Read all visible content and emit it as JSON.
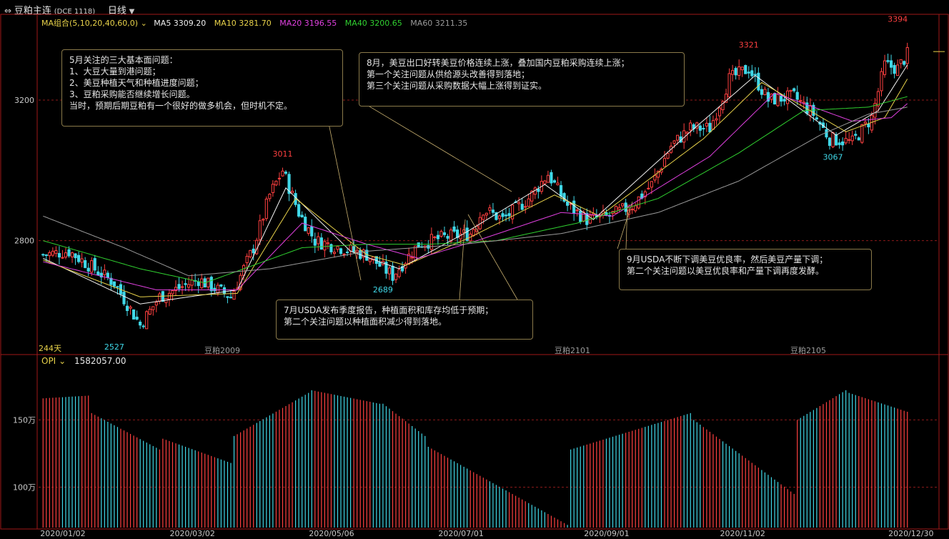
{
  "header": {
    "symbol_label": "豆粕主连",
    "exchange_code": "(DCE 1118)",
    "period_label": "日线",
    "ma_group_label": "MA组合(5,10,20,40,60,0)",
    "ma5_label": "MA5 3309.20",
    "ma10_label": "MA10 3281.70",
    "ma20_label": "MA20 3196.55",
    "ma40_label": "MA40 3200.65",
    "ma60_label": "MA60 3211.35"
  },
  "colors": {
    "up": "#ff4040",
    "down": "#40d8e8",
    "ma5": "#f0f0f0",
    "ma10": "#e8d24a",
    "ma20": "#e040e0",
    "ma40": "#30d030",
    "ma60": "#9a9a9a",
    "grid": "#8b1a1a",
    "border": "#a01818",
    "axis_text": "#c8c8c8"
  },
  "main_panel": {
    "bar_count_label": "244天",
    "contract_labels": [
      "豆粕2009",
      "豆粕2101",
      "豆粕2105"
    ]
  },
  "annotations": [
    {
      "id": "may",
      "text": "5月关注的三大基本面问题：\n1、大豆大量到港问题；\n2、美豆种植天气和种植进度问题；\n3、豆粕采购能否继续增长问题。\n当时，预期后期豆粕有一个很好的做多机会，但时机不定。"
    },
    {
      "id": "aug",
      "text": "8月，美豆出口好转美豆价格连续上涨，叠加国内豆粕采购连续上涨；\n第一个关注问题从供给源头改善得到落地；\n第三个关注问题从采购数据大幅上涨得到证实。"
    },
    {
      "id": "jul",
      "text": "7月USDA发布季度报告，种植面积和库存均低于预期；\n第二个关注问题以种植面积减少得到落地。"
    },
    {
      "id": "sep",
      "text": "9月USDA不断下调美豆优良率，然后美豆产量下调；\n第二个关注问题以美豆优良率和产量下调再度发酵。"
    }
  ],
  "oi_panel": {
    "label": "OPI",
    "value": "1582057.00",
    "y_ticks": [
      "150万",
      "100万"
    ]
  },
  "chart_data": {
    "type": "candlestick",
    "title": "豆粕主连 日线",
    "y_ticks": [
      3200,
      2800
    ],
    "ylim": [
      2480,
      3440
    ],
    "x_ticks": [
      "2020/01/02",
      "2020/03/02",
      "2020/05/06",
      "2020/07/01",
      "2020/09/01",
      "2020/11/02",
      "2020/12/30"
    ],
    "extremes": [
      {
        "label": "3394",
        "value": 3394,
        "kind": "high",
        "date": "2020/12/30"
      },
      {
        "label": "3321",
        "value": 3321,
        "kind": "high",
        "date": "2020/10"
      },
      {
        "label": "3011",
        "value": 3011,
        "kind": "high",
        "date": "2020/04"
      },
      {
        "label": "3067",
        "value": 3067,
        "kind": "low",
        "date": "2020/12"
      },
      {
        "label": "2689",
        "value": 2689,
        "kind": "low",
        "date": "2020/06"
      },
      {
        "label": "2527",
        "value": 2527,
        "kind": "low",
        "date": "2020/02"
      }
    ],
    "close_path": [
      {
        "x": 0,
        "v": 2760
      },
      {
        "x": 8,
        "v": 2770
      },
      {
        "x": 22,
        "v": 2680
      },
      {
        "x": 30,
        "v": 2560
      },
      {
        "x": 36,
        "v": 2640
      },
      {
        "x": 48,
        "v": 2690
      },
      {
        "x": 58,
        "v": 2640
      },
      {
        "x": 65,
        "v": 2780
      },
      {
        "x": 70,
        "v": 2930
      },
      {
        "x": 74,
        "v": 3000
      },
      {
        "x": 79,
        "v": 2880
      },
      {
        "x": 84,
        "v": 2800
      },
      {
        "x": 92,
        "v": 2780
      },
      {
        "x": 100,
        "v": 2760
      },
      {
        "x": 108,
        "v": 2700
      },
      {
        "x": 116,
        "v": 2790
      },
      {
        "x": 124,
        "v": 2810
      },
      {
        "x": 132,
        "v": 2820
      },
      {
        "x": 136,
        "v": 2890
      },
      {
        "x": 142,
        "v": 2860
      },
      {
        "x": 150,
        "v": 2920
      },
      {
        "x": 156,
        "v": 2990
      },
      {
        "x": 162,
        "v": 2900
      },
      {
        "x": 168,
        "v": 2860
      },
      {
        "x": 175,
        "v": 2870
      },
      {
        "x": 182,
        "v": 2900
      },
      {
        "x": 188,
        "v": 2960
      },
      {
        "x": 194,
        "v": 3070
      },
      {
        "x": 200,
        "v": 3120
      },
      {
        "x": 206,
        "v": 3120
      },
      {
        "x": 212,
        "v": 3260
      },
      {
        "x": 218,
        "v": 3290
      },
      {
        "x": 224,
        "v": 3200
      },
      {
        "x": 232,
        "v": 3210
      },
      {
        "x": 238,
        "v": 3160
      },
      {
        "x": 243,
        "v": 3090
      },
      {
        "x": 250,
        "v": 3080
      },
      {
        "x": 256,
        "v": 3150
      },
      {
        "x": 260,
        "v": 3300
      },
      {
        "x": 264,
        "v": 3290
      },
      {
        "x": 267,
        "v": 3330
      }
    ],
    "ma_paths": [
      {
        "name": "MA5",
        "points": [
          {
            "x": 0,
            "v": 2750
          },
          {
            "x": 30,
            "v": 2620
          },
          {
            "x": 60,
            "v": 2660
          },
          {
            "x": 75,
            "v": 2950
          },
          {
            "x": 95,
            "v": 2770
          },
          {
            "x": 110,
            "v": 2720
          },
          {
            "x": 130,
            "v": 2820
          },
          {
            "x": 155,
            "v": 2960
          },
          {
            "x": 170,
            "v": 2860
          },
          {
            "x": 200,
            "v": 3110
          },
          {
            "x": 220,
            "v": 3270
          },
          {
            "x": 245,
            "v": 3100
          },
          {
            "x": 258,
            "v": 3170
          },
          {
            "x": 267,
            "v": 3300
          }
        ]
      },
      {
        "name": "MA10",
        "points": [
          {
            "x": 0,
            "v": 2745
          },
          {
            "x": 30,
            "v": 2640
          },
          {
            "x": 60,
            "v": 2650
          },
          {
            "x": 78,
            "v": 2920
          },
          {
            "x": 100,
            "v": 2760
          },
          {
            "x": 112,
            "v": 2730
          },
          {
            "x": 132,
            "v": 2810
          },
          {
            "x": 158,
            "v": 2930
          },
          {
            "x": 172,
            "v": 2870
          },
          {
            "x": 204,
            "v": 3090
          },
          {
            "x": 222,
            "v": 3250
          },
          {
            "x": 248,
            "v": 3110
          },
          {
            "x": 260,
            "v": 3150
          },
          {
            "x": 267,
            "v": 3260
          }
        ]
      },
      {
        "name": "MA20",
        "points": [
          {
            "x": 0,
            "v": 2740
          },
          {
            "x": 35,
            "v": 2660
          },
          {
            "x": 60,
            "v": 2660
          },
          {
            "x": 80,
            "v": 2850
          },
          {
            "x": 100,
            "v": 2790
          },
          {
            "x": 116,
            "v": 2750
          },
          {
            "x": 134,
            "v": 2800
          },
          {
            "x": 160,
            "v": 2880
          },
          {
            "x": 176,
            "v": 2870
          },
          {
            "x": 206,
            "v": 3040
          },
          {
            "x": 226,
            "v": 3220
          },
          {
            "x": 250,
            "v": 3140
          },
          {
            "x": 262,
            "v": 3150
          },
          {
            "x": 267,
            "v": 3190
          }
        ]
      },
      {
        "name": "MA40",
        "points": [
          {
            "x": 0,
            "v": 2800
          },
          {
            "x": 30,
            "v": 2720
          },
          {
            "x": 50,
            "v": 2680
          },
          {
            "x": 80,
            "v": 2780
          },
          {
            "x": 100,
            "v": 2790
          },
          {
            "x": 120,
            "v": 2790
          },
          {
            "x": 140,
            "v": 2800
          },
          {
            "x": 165,
            "v": 2850
          },
          {
            "x": 190,
            "v": 2920
          },
          {
            "x": 215,
            "v": 3050
          },
          {
            "x": 235,
            "v": 3170
          },
          {
            "x": 255,
            "v": 3180
          },
          {
            "x": 267,
            "v": 3210
          }
        ]
      },
      {
        "name": "MA60",
        "points": [
          {
            "x": 0,
            "v": 2870
          },
          {
            "x": 25,
            "v": 2780
          },
          {
            "x": 45,
            "v": 2700
          },
          {
            "x": 70,
            "v": 2720
          },
          {
            "x": 100,
            "v": 2770
          },
          {
            "x": 130,
            "v": 2790
          },
          {
            "x": 160,
            "v": 2820
          },
          {
            "x": 190,
            "v": 2880
          },
          {
            "x": 215,
            "v": 2970
          },
          {
            "x": 240,
            "v": 3100
          },
          {
            "x": 255,
            "v": 3160
          },
          {
            "x": 267,
            "v": 3180
          }
        ]
      }
    ],
    "oi": {
      "unit": "万",
      "ylim": [
        70,
        190
      ],
      "segments": [
        {
          "x0": 0,
          "x1": 14,
          "v0": 166,
          "v1": 168
        },
        {
          "x0": 15,
          "x1": 36,
          "v0": 155,
          "v1": 128
        },
        {
          "x0": 37,
          "x1": 58,
          "v0": 136,
          "v1": 118
        },
        {
          "x0": 59,
          "x1": 82,
          "v0": 138,
          "v1": 170
        },
        {
          "x0": 83,
          "x1": 104,
          "v0": 172,
          "v1": 162
        },
        {
          "x0": 105,
          "x1": 118,
          "v0": 162,
          "v1": 138
        },
        {
          "x0": 119,
          "x1": 162,
          "v0": 130,
          "v1": 72
        },
        {
          "x0": 163,
          "x1": 200,
          "v0": 128,
          "v1": 155
        },
        {
          "x0": 201,
          "x1": 232,
          "v0": 150,
          "v1": 95
        },
        {
          "x0": 233,
          "x1": 248,
          "v0": 150,
          "v1": 172
        },
        {
          "x0": 249,
          "x1": 267,
          "v0": 170,
          "v1": 156
        }
      ],
      "last_value": 158.2
    }
  }
}
